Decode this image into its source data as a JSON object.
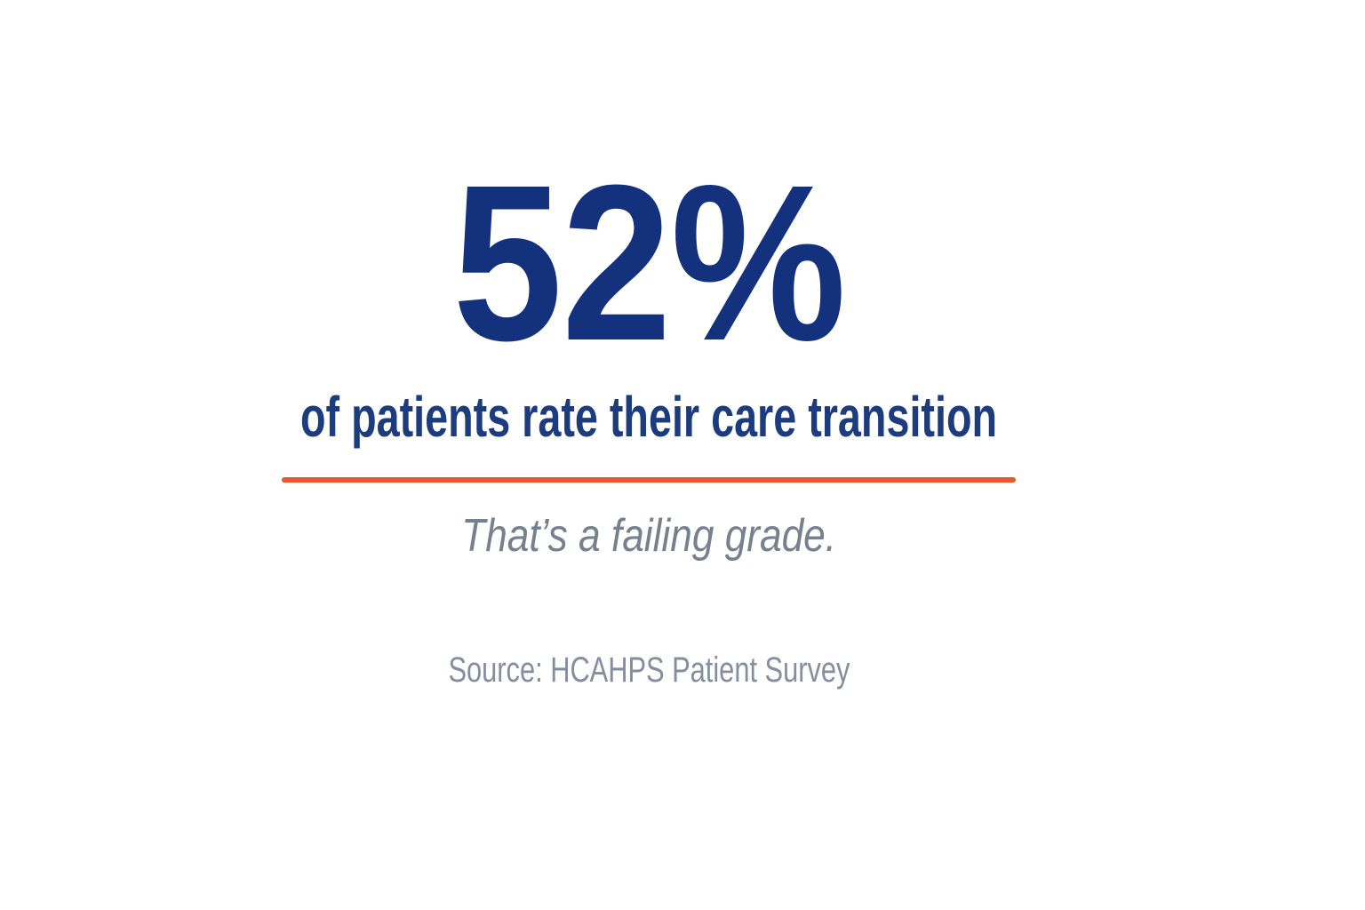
{
  "slide": {
    "stat": {
      "value": "52%",
      "description": "of patients rate their care transition"
    },
    "emphasis": "That’s a failing grade.",
    "source": "Source: HCAHPS Patient Survey",
    "colors": {
      "stat_navy": "#14317E",
      "description_navy": "#1C3C7E",
      "divider_orange": "#E8582B",
      "emphasis_gray": "#76818F",
      "source_gray": "#848E9E",
      "background": "#FFFFFF"
    }
  }
}
